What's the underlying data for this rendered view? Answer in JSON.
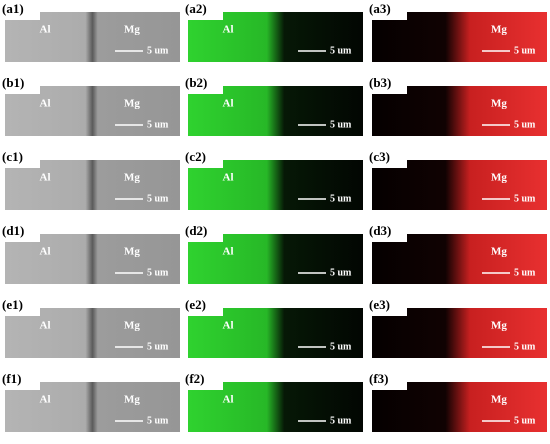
{
  "rows": [
    {
      "panels": [
        {
          "label": "(a1)",
          "left_text": "Al",
          "right_text": "Mg",
          "scale": "5 um"
        },
        {
          "label": "(a2)",
          "left_text": "Al",
          "scale": "5 um"
        },
        {
          "label": "(a3)",
          "right_text": "Mg",
          "scale": "5 um"
        }
      ]
    },
    {
      "panels": [
        {
          "label": "(b1)",
          "left_text": "Al",
          "right_text": "Mg",
          "scale": "5 um"
        },
        {
          "label": "(b2)",
          "left_text": "Al",
          "scale": "5 um"
        },
        {
          "label": "(b3)",
          "right_text": "Mg",
          "scale": "5 um"
        }
      ]
    },
    {
      "panels": [
        {
          "label": "(c1)",
          "left_text": "Al",
          "right_text": "Mg",
          "scale": "5 um"
        },
        {
          "label": "(c2)",
          "left_text": "Al",
          "scale": "5 um"
        },
        {
          "label": "(c3)",
          "right_text": "Mg",
          "scale": "5 um"
        }
      ]
    },
    {
      "panels": [
        {
          "label": "(d1)",
          "left_text": "Al",
          "right_text": "Mg",
          "scale": "5 um"
        },
        {
          "label": "(d2)",
          "left_text": "Al",
          "scale": "5 um"
        },
        {
          "label": "(d3)",
          "right_text": "Mg",
          "scale": "5 um"
        }
      ]
    },
    {
      "panels": [
        {
          "label": "(e1)",
          "left_text": "Al",
          "right_text": "Mg",
          "scale": "5 um"
        },
        {
          "label": "(e2)",
          "left_text": "Al",
          "scale": "5 um"
        },
        {
          "label": "(e3)",
          "right_text": "Mg",
          "scale": "5 um"
        }
      ]
    },
    {
      "panels": [
        {
          "label": "(f1)",
          "left_text": "Al",
          "right_text": "Mg",
          "scale": "5 um"
        },
        {
          "label": "(f2)",
          "left_text": "Al",
          "scale": "5 um"
        },
        {
          "label": "(f3)",
          "right_text": "Mg",
          "scale": "5 um"
        }
      ]
    }
  ]
}
